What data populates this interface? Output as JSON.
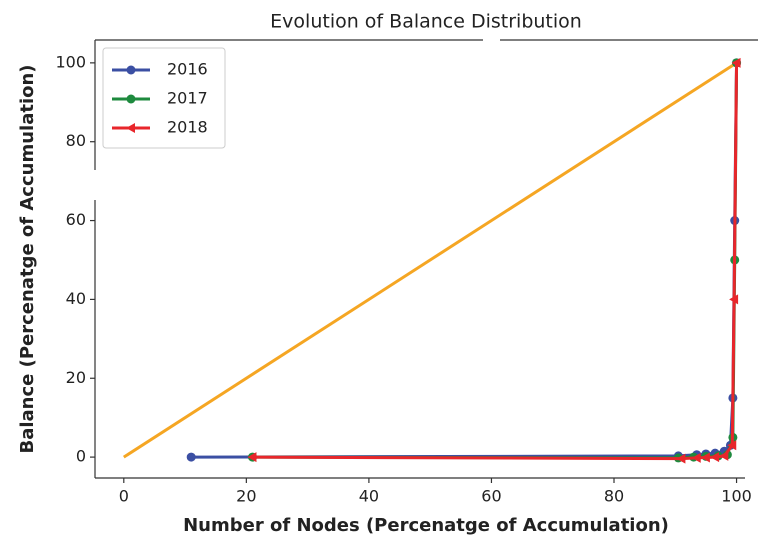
{
  "chart_data": {
    "type": "line",
    "title": "Evolution of Balance Distribution",
    "x_label": "Number of Nodes (Percenatge of Accumulation)",
    "y_label": "Balance (Percenatge of Accumulation)",
    "xlim": [
      -4.7,
      103.5
    ],
    "ylim": [
      -5.3,
      105.8
    ],
    "xticks": [
      0,
      20,
      40,
      60,
      80,
      100
    ],
    "yticks": [
      0,
      20,
      40,
      60,
      80,
      100
    ],
    "legend": "upper left",
    "reference_line": {
      "color": "#f5a623",
      "x": [
        0,
        100
      ],
      "values": [
        0,
        100
      ]
    },
    "series": [
      {
        "name": "2016",
        "color": "#3b4fa3",
        "marker": "circle",
        "x": [
          11,
          90.5,
          93.5,
          95,
          96.5,
          98,
          99,
          99.4,
          99.7,
          100
        ],
        "values": [
          0,
          0.3,
          0.6,
          0.8,
          1,
          1.5,
          3,
          15,
          60,
          100
        ]
      },
      {
        "name": "2017",
        "color": "#1e8a3e",
        "marker": "circle",
        "x": [
          21,
          90.5,
          93,
          95,
          97,
          98.5,
          99.4,
          99.7,
          100
        ],
        "values": [
          0,
          -0.2,
          0,
          0.2,
          0.3,
          0.6,
          5,
          50,
          100
        ]
      },
      {
        "name": "2018",
        "color": "#e8262b",
        "marker": "triangle-left",
        "x": [
          21,
          91,
          93.5,
          95,
          96.5,
          98,
          99.3,
          99.6,
          100
        ],
        "values": [
          0,
          -0.4,
          -0.2,
          -0.1,
          0,
          0.3,
          3,
          40,
          100
        ]
      }
    ]
  }
}
